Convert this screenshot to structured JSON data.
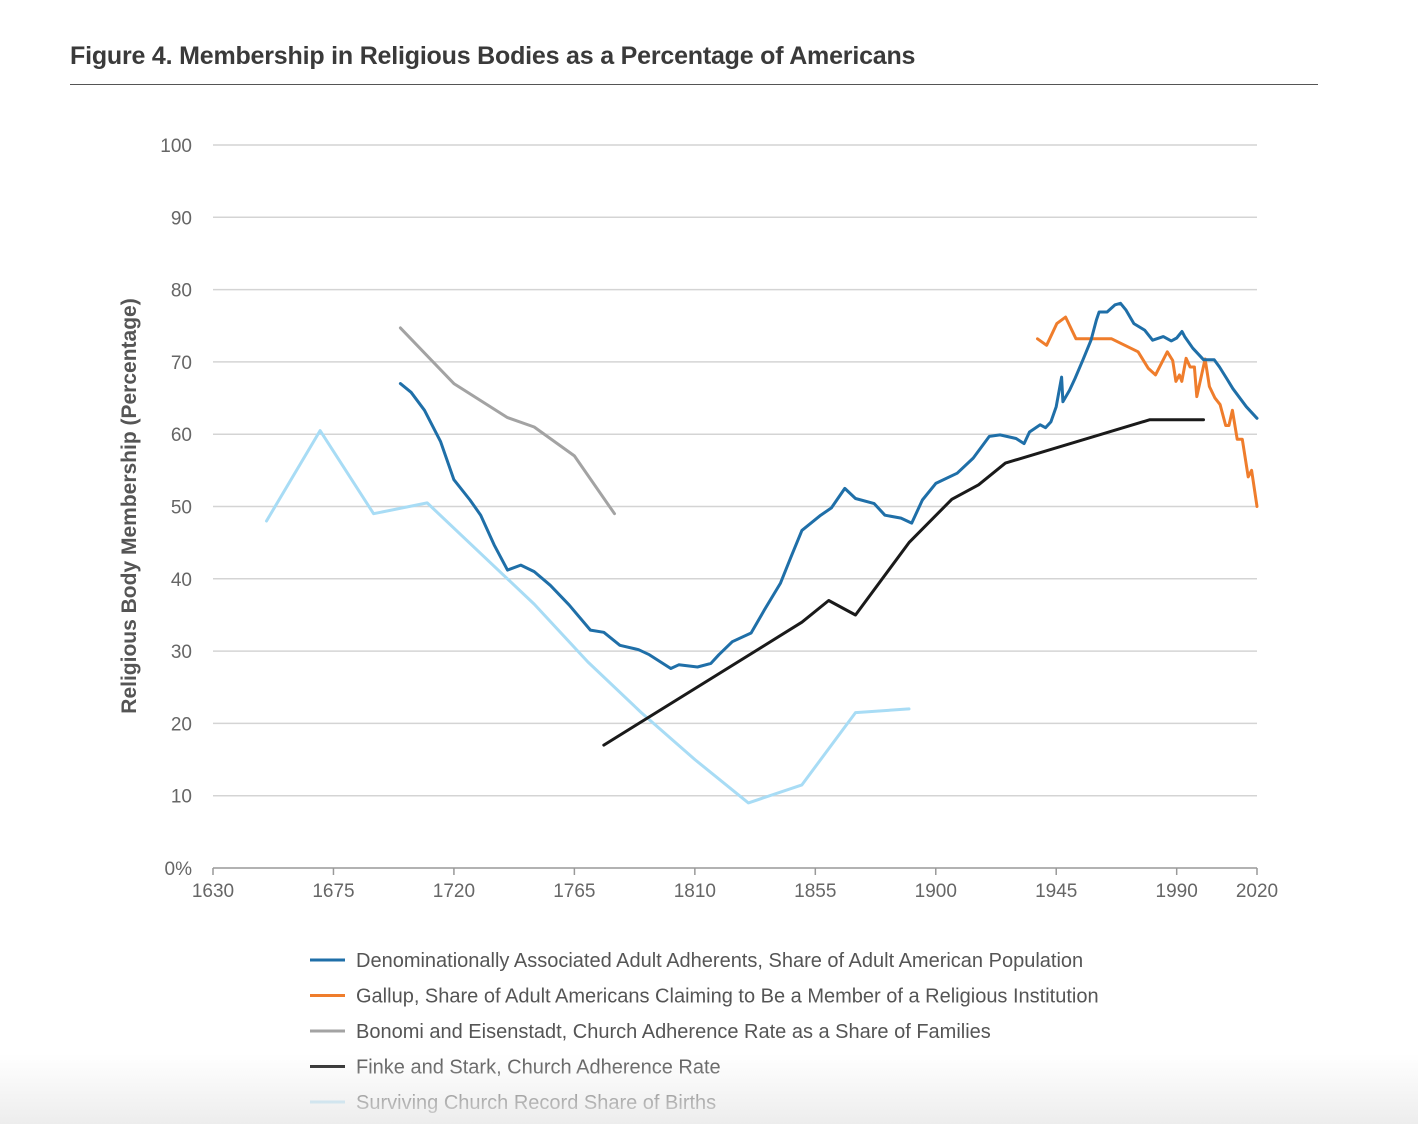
{
  "title": "Figure 4. Membership in Religious Bodies as a Percentage of Americans",
  "chart_data": {
    "type": "line",
    "title": "Figure 4. Membership in Religious Bodies as a Percentage of Americans",
    "xlabel": "",
    "ylabel": "Religious Body Membership (Percentage)",
    "xlim": [
      1630,
      2020
    ],
    "ylim": [
      0,
      100
    ],
    "x_ticks": [
      "1630",
      "1675",
      "1720",
      "1765",
      "1810",
      "1855",
      "1900",
      "1945",
      "1990",
      "2020"
    ],
    "x_tick_values": [
      1630,
      1675,
      1720,
      1765,
      1810,
      1855,
      1900,
      1945,
      1990,
      2020
    ],
    "y_ticks": [
      "0%",
      "10",
      "20",
      "30",
      "40",
      "50",
      "60",
      "70",
      "80",
      "90",
      "100"
    ],
    "y_tick_values": [
      0,
      10,
      20,
      30,
      40,
      50,
      60,
      70,
      80,
      90,
      100
    ],
    "grid": true,
    "legend_position": "bottom",
    "series": [
      {
        "name": "Denominationally Associated Adult Adherents, Share of Adult American Population",
        "color": "#1f6fa8",
        "x": [
          1700,
          1704,
          1709,
          1715,
          1720,
          1726,
          1730,
          1735,
          1740,
          1745,
          1750,
          1756,
          1763,
          1771,
          1776,
          1782,
          1789,
          1793,
          1801,
          1804,
          1811,
          1816,
          1819,
          1824,
          1831,
          1836,
          1842,
          1846,
          1850,
          1857,
          1861,
          1866,
          1870,
          1877,
          1881,
          1887,
          1891,
          1895,
          1900,
          1908,
          1914,
          1920,
          1924,
          1930,
          1933,
          1935,
          1939,
          1941,
          1943,
          1945,
          1947,
          1947.5,
          1950,
          1952,
          1955,
          1958,
          1960,
          1961,
          1964,
          1967,
          1969,
          1971,
          1974,
          1978,
          1981,
          1985,
          1988,
          1990,
          1992,
          1993,
          1996,
          2000,
          2004,
          2006,
          2009,
          2011,
          2016,
          2020
        ],
        "y": [
          67,
          65.8,
          63.3,
          59,
          53.7,
          50.9,
          48.8,
          44.7,
          41.2,
          41.9,
          41,
          39.1,
          36.4,
          32.9,
          32.6,
          30.8,
          30.2,
          29.5,
          27.6,
          28.1,
          27.8,
          28.3,
          29.5,
          31.3,
          32.5,
          35.7,
          39.4,
          43.1,
          46.7,
          48.8,
          49.8,
          52.5,
          51.1,
          50.4,
          48.8,
          48.4,
          47.7,
          50.9,
          53.2,
          54.6,
          56.7,
          59.7,
          59.9,
          59.4,
          58.7,
          60.3,
          61.3,
          60.9,
          61.7,
          63.8,
          67.9,
          64.5,
          66.1,
          67.7,
          70.3,
          73,
          75.8,
          76.9,
          76.9,
          77.9,
          78.1,
          77.2,
          75.3,
          74.4,
          73,
          73.5,
          72.9,
          73.3,
          74.2,
          73.5,
          71.9,
          70.3,
          70.3,
          69.3,
          67.5,
          66.3,
          63.8,
          62.2
        ]
      },
      {
        "name": "Gallup, Share of Adult Americans Claiming to Be a Member of a Religious Institution",
        "color": "#ef7d2c",
        "x": [
          1938,
          1941.4,
          1945.2,
          1948.5,
          1952.4,
          1965.7,
          1975.6,
          1979.4,
          1982.1,
          1986.5,
          1988.5,
          1989.7,
          1991,
          1991.9,
          1993.5,
          1995,
          1996.6,
          1997.5,
          2000.6,
          2002.2,
          2004.3,
          2006.2,
          2008.3,
          2009.5,
          2010.8,
          2012.6,
          2014.5,
          2016.7,
          2018,
          2020
        ],
        "y": [
          73.2,
          72.3,
          75.3,
          76.2,
          73.2,
          73.2,
          71.4,
          69.1,
          68.2,
          71.4,
          70.2,
          67.3,
          68.2,
          67.3,
          70.5,
          69.3,
          69.3,
          65.2,
          70.4,
          66.6,
          65,
          64.1,
          61.2,
          61.2,
          63.3,
          59.3,
          59.3,
          54.1,
          55,
          50
        ]
      },
      {
        "name": "Bonomi and Eisenstadt, Church Adherence Rate as a Share of Families",
        "color": "#a3a3a3",
        "x": [
          1700,
          1720,
          1740,
          1750,
          1765,
          1780
        ],
        "y": [
          74.7,
          67,
          62.3,
          61,
          57,
          49
        ]
      },
      {
        "name": "Finke and Stark, Church Adherence Rate",
        "color": "#1a1a1a",
        "x": [
          1776,
          1850,
          1860,
          1870,
          1890,
          1906,
          1916,
          1926,
          1980,
          2000
        ],
        "y": [
          17,
          34,
          37,
          35,
          45,
          51,
          53,
          56,
          62,
          62
        ]
      },
      {
        "name": "Surviving Church Record Share of Births",
        "color": "#a8dcf5",
        "x": [
          1650,
          1670,
          1690,
          1710,
          1750,
          1770,
          1790,
          1810,
          1830,
          1850,
          1870,
          1890
        ],
        "y": [
          48,
          60.5,
          49,
          50.5,
          36.5,
          28.5,
          21.5,
          15,
          9,
          11.5,
          21.5,
          22
        ]
      }
    ]
  }
}
